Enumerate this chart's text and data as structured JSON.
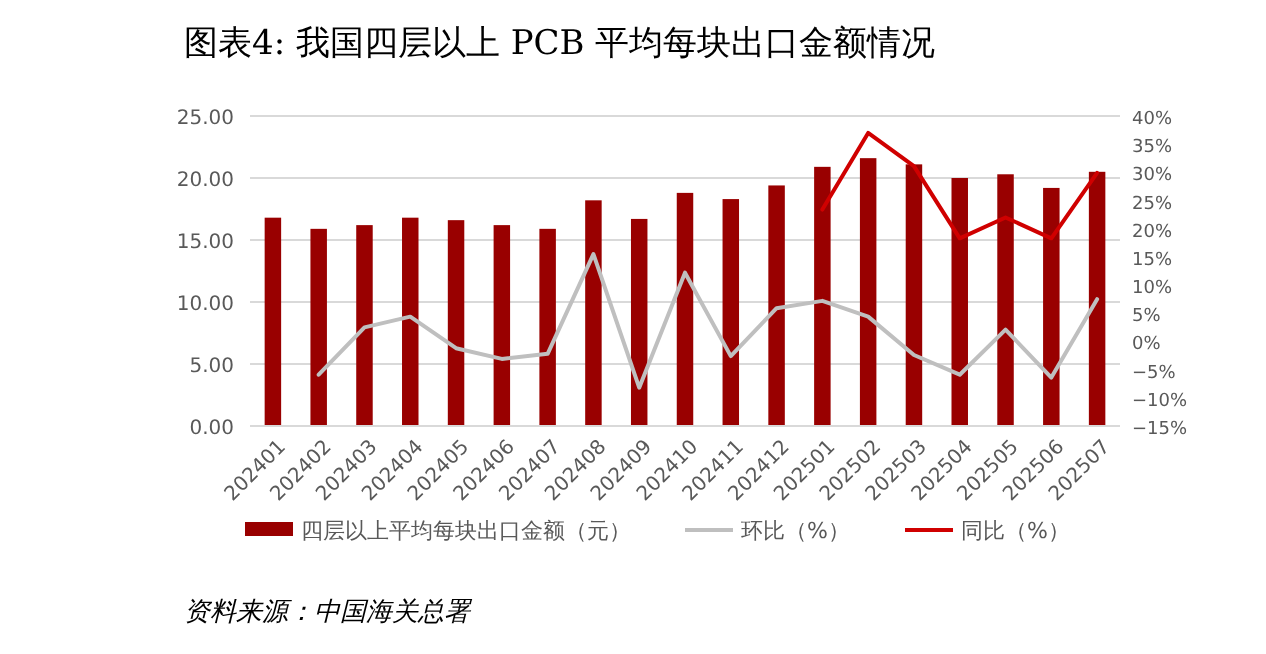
{
  "chart_data": {
    "type": "bar",
    "title": "图表4:  我国四层以上 PCB 平均每块出口金额情况",
    "categories": [
      "202401",
      "202402",
      "202403",
      "202404",
      "202405",
      "202406",
      "202407",
      "202408",
      "202409",
      "202410",
      "202411",
      "202412",
      "202501",
      "202502",
      "202503",
      "202504",
      "202505",
      "202506",
      "202507"
    ],
    "series": [
      {
        "name": "四层以上平均每块出口金额（元）",
        "color": "#990000",
        "values": [
          16.8,
          15.9,
          16.2,
          16.8,
          16.6,
          16.2,
          15.9,
          18.2,
          16.7,
          18.8,
          18.3,
          19.4,
          20.9,
          21.6,
          21.1,
          20.0,
          20.3,
          19.2,
          20.5
        ]
      },
      {
        "name": "环比（%）",
        "type": "line",
        "axis": "y2",
        "color": "#bfbfbf",
        "values": [
          null,
          -5.9,
          2.5,
          4.4,
          -1.2,
          -3.1,
          -2.2,
          15.5,
          -8.2,
          12.2,
          -2.6,
          5.9,
          7.2,
          4.4,
          -2.4,
          -5.9,
          2.1,
          -6.4,
          7.5
        ]
      },
      {
        "name": "同比（%）",
        "type": "line",
        "axis": "y2",
        "color": "#d00000",
        "values": [
          null,
          null,
          null,
          null,
          null,
          null,
          null,
          null,
          null,
          null,
          null,
          null,
          23.4,
          37.0,
          31.1,
          18.3,
          22.0,
          18.3,
          29.9
        ]
      }
    ],
    "ylim": [
      0,
      25
    ],
    "yticks": [
      {
        "value": 0,
        "label": "0.00"
      },
      {
        "value": 5,
        "label": "5.00"
      },
      {
        "value": 10,
        "label": "10.00"
      },
      {
        "value": 15,
        "label": "15.00"
      },
      {
        "value": 20,
        "label": "20.00"
      },
      {
        "value": 25,
        "label": "25.00"
      }
    ],
    "y2lim": [
      -15,
      40
    ],
    "y2ticks": [
      {
        "value": -15,
        "label": "−15%"
      },
      {
        "value": -10,
        "label": "−10%"
      },
      {
        "value": -5,
        "label": "−5%"
      },
      {
        "value": 0,
        "label": "0%"
      },
      {
        "value": 5,
        "label": "5%"
      },
      {
        "value": 10,
        "label": "10%"
      },
      {
        "value": 15,
        "label": "15%"
      },
      {
        "value": 20,
        "label": "20%"
      },
      {
        "value": 25,
        "label": "25%"
      },
      {
        "value": 30,
        "label": "30%"
      },
      {
        "value": 35,
        "label": "35%"
      },
      {
        "value": 40,
        "label": "40%"
      }
    ],
    "grid": "y",
    "legend": "bottom",
    "annotations": [
      "资料来源：中国海关总署"
    ]
  }
}
